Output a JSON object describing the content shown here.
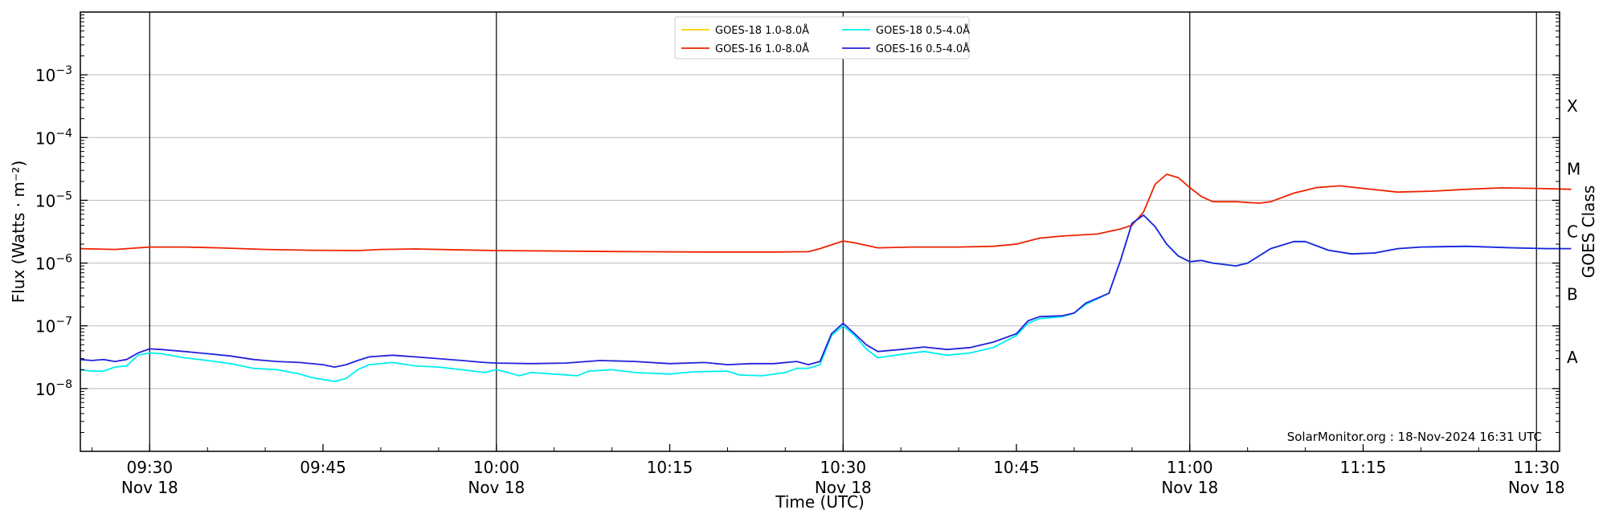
{
  "chart_data": {
    "type": "line",
    "xlabel": "Time (UTC)",
    "ylabel": "Flux (Watts · m⁻²)",
    "y2label": "GOES Class",
    "yscale": "log",
    "ylim": [
      1e-09,
      0.01
    ],
    "xlim": [
      "09:24",
      "11:32"
    ],
    "grid": "horizontal",
    "legend_position": "top-center",
    "credit": "SolarMonitor.org : 18-Nov-2024 16:31 UTC",
    "y_ticks": [
      {
        "value": 0.001,
        "base": "10",
        "exp": "−3"
      },
      {
        "value": 0.0001,
        "base": "10",
        "exp": "−4"
      },
      {
        "value": 1e-05,
        "base": "10",
        "exp": "−5"
      },
      {
        "value": 1e-06,
        "base": "10",
        "exp": "−6"
      },
      {
        "value": 1e-07,
        "base": "10",
        "exp": "−7"
      },
      {
        "value": 1e-08,
        "base": "10",
        "exp": "−8"
      }
    ],
    "goes_classes": [
      {
        "label": "X",
        "value": 0.0001
      },
      {
        "label": "M",
        "value": 1e-05
      },
      {
        "label": "C",
        "value": 1e-06
      },
      {
        "label": "B",
        "value": 1e-07
      },
      {
        "label": "A",
        "value": 1e-08
      }
    ],
    "x_ticks": [
      {
        "time": "09:30",
        "label": "09:30",
        "sublabel": "Nov 18"
      },
      {
        "time": "09:45",
        "label": "09:45",
        "sublabel": ""
      },
      {
        "time": "10:00",
        "label": "10:00",
        "sublabel": "Nov 18"
      },
      {
        "time": "10:15",
        "label": "10:15",
        "sublabel": ""
      },
      {
        "time": "10:30",
        "label": "10:30",
        "sublabel": "Nov 18"
      },
      {
        "time": "10:45",
        "label": "10:45",
        "sublabel": ""
      },
      {
        "time": "11:00",
        "label": "11:00",
        "sublabel": "Nov 18"
      },
      {
        "time": "11:15",
        "label": "11:15",
        "sublabel": ""
      },
      {
        "time": "11:30",
        "label": "11:30",
        "sublabel": "Nov 18"
      }
    ],
    "vlines": [
      "09:30",
      "10:00",
      "10:30",
      "11:00",
      "11:30"
    ],
    "series": [
      {
        "name": "GOES-18 1.0-8.0Å",
        "color": "#ffcc00",
        "points": []
      },
      {
        "name": "GOES-16 1.0-8.0Å",
        "color": "#ee2200",
        "points": [
          [
            "09:24",
            1.7e-06
          ],
          [
            "09:27",
            1.65e-06
          ],
          [
            "09:30",
            1.8e-06
          ],
          [
            "09:33",
            1.8e-06
          ],
          [
            "09:36",
            1.75e-06
          ],
          [
            "09:40",
            1.65e-06
          ],
          [
            "09:44",
            1.6e-06
          ],
          [
            "09:48",
            1.58e-06
          ],
          [
            "09:50",
            1.65e-06
          ],
          [
            "09:53",
            1.68e-06
          ],
          [
            "09:57",
            1.62e-06
          ],
          [
            "10:00",
            1.58e-06
          ],
          [
            "10:06",
            1.55e-06
          ],
          [
            "10:12",
            1.52e-06
          ],
          [
            "10:18",
            1.5e-06
          ],
          [
            "10:24",
            1.5e-06
          ],
          [
            "10:27",
            1.52e-06
          ],
          [
            "10:28",
            1.7e-06
          ],
          [
            "10:30",
            2.25e-06
          ],
          [
            "10:31",
            2.1e-06
          ],
          [
            "10:33",
            1.75e-06
          ],
          [
            "10:36",
            1.8e-06
          ],
          [
            "10:40",
            1.8e-06
          ],
          [
            "10:43",
            1.85e-06
          ],
          [
            "10:45",
            2e-06
          ],
          [
            "10:47",
            2.5e-06
          ],
          [
            "10:49",
            2.7e-06
          ],
          [
            "10:52",
            2.9e-06
          ],
          [
            "10:54",
            3.5e-06
          ],
          [
            "10:55",
            4e-06
          ],
          [
            "10:56",
            6.5e-06
          ],
          [
            "10:57",
            1.8e-05
          ],
          [
            "10:58",
            2.6e-05
          ],
          [
            "10:59",
            2.3e-05
          ],
          [
            "11:00",
            1.6e-05
          ],
          [
            "11:01",
            1.15e-05
          ],
          [
            "11:02",
            9.5e-06
          ],
          [
            "11:04",
            9.5e-06
          ],
          [
            "11:06",
            9e-06
          ],
          [
            "11:07",
            9.5e-06
          ],
          [
            "11:09",
            1.3e-05
          ],
          [
            "11:11",
            1.6e-05
          ],
          [
            "11:13",
            1.7e-05
          ],
          [
            "11:15",
            1.55e-05
          ],
          [
            "11:18",
            1.35e-05
          ],
          [
            "11:21",
            1.4e-05
          ],
          [
            "11:24",
            1.5e-05
          ],
          [
            "11:27",
            1.58e-05
          ],
          [
            "11:30",
            1.55e-05
          ],
          [
            "11:33",
            1.5e-05
          ]
        ]
      },
      {
        "name": "GOES-18 0.5-4.0Å",
        "color": "#00eeee",
        "points": [
          [
            "09:24",
            2e-08
          ],
          [
            "09:25",
            1.9e-08
          ],
          [
            "09:26",
            1.9e-08
          ],
          [
            "09:27",
            2.2e-08
          ],
          [
            "09:28",
            2.3e-08
          ],
          [
            "09:29",
            3.4e-08
          ],
          [
            "09:30",
            3.7e-08
          ],
          [
            "09:31",
            3.6e-08
          ],
          [
            "09:33",
            3.1e-08
          ],
          [
            "09:35",
            2.8e-08
          ],
          [
            "09:37",
            2.5e-08
          ],
          [
            "09:39",
            2.1e-08
          ],
          [
            "09:41",
            2e-08
          ],
          [
            "09:43",
            1.7e-08
          ],
          [
            "09:44",
            1.5e-08
          ],
          [
            "09:46",
            1.3e-08
          ],
          [
            "09:47",
            1.45e-08
          ],
          [
            "09:48",
            2e-08
          ],
          [
            "09:49",
            2.4e-08
          ],
          [
            "09:51",
            2.6e-08
          ],
          [
            "09:53",
            2.3e-08
          ],
          [
            "09:55",
            2.2e-08
          ],
          [
            "09:57",
            2e-08
          ],
          [
            "09:59",
            1.8e-08
          ],
          [
            "10:00",
            2e-08
          ],
          [
            "10:01",
            1.8e-08
          ],
          [
            "10:02",
            1.6e-08
          ],
          [
            "10:03",
            1.8e-08
          ],
          [
            "10:05",
            1.7e-08
          ],
          [
            "10:07",
            1.6e-08
          ],
          [
            "10:08",
            1.9e-08
          ],
          [
            "10:10",
            2e-08
          ],
          [
            "10:12",
            1.8e-08
          ],
          [
            "10:15",
            1.7e-08
          ],
          [
            "10:17",
            1.85e-08
          ],
          [
            "10:20",
            1.9e-08
          ],
          [
            "10:21",
            1.65e-08
          ],
          [
            "10:23",
            1.6e-08
          ],
          [
            "10:25",
            1.8e-08
          ],
          [
            "10:26",
            2.1e-08
          ],
          [
            "10:27",
            2.1e-08
          ],
          [
            "10:28",
            2.4e-08
          ],
          [
            "10:29",
            7e-08
          ],
          [
            "10:30",
            1e-07
          ],
          [
            "10:31",
            7e-08
          ],
          [
            "10:32",
            4.3e-08
          ],
          [
            "10:33",
            3.1e-08
          ],
          [
            "10:35",
            3.5e-08
          ],
          [
            "10:37",
            3.9e-08
          ],
          [
            "10:39",
            3.4e-08
          ],
          [
            "10:41",
            3.7e-08
          ],
          [
            "10:43",
            4.5e-08
          ],
          [
            "10:45",
            7e-08
          ],
          [
            "10:46",
            1.1e-07
          ],
          [
            "10:47",
            1.3e-07
          ],
          [
            "10:49",
            1.4e-07
          ],
          [
            "10:50",
            1.6e-07
          ],
          [
            "10:51",
            2.2e-07
          ],
          [
            "10:53",
            3.3e-07
          ],
          [
            "10:54",
            1.1e-06
          ],
          [
            "10:55",
            4.3e-06
          ],
          [
            "10:56",
            5.8e-06
          ],
          [
            "10:57",
            3.8e-06
          ],
          [
            "10:58",
            2e-06
          ],
          [
            "10:59",
            1.3e-06
          ],
          [
            "11:00",
            1.05e-06
          ],
          [
            "11:01",
            1.1e-06
          ],
          [
            "11:02",
            1e-06
          ],
          [
            "11:04",
            9e-07
          ],
          [
            "11:05",
            1e-06
          ],
          [
            "11:07",
            1.7e-06
          ],
          [
            "11:09",
            2.2e-06
          ],
          [
            "11:10",
            2.2e-06
          ],
          [
            "11:12",
            1.6e-06
          ],
          [
            "11:14",
            1.4e-06
          ],
          [
            "11:16",
            1.45e-06
          ],
          [
            "11:18",
            1.7e-06
          ],
          [
            "11:20",
            1.8e-06
          ],
          [
            "11:24",
            1.85e-06
          ],
          [
            "11:28",
            1.75e-06
          ],
          [
            "11:31",
            1.7e-06
          ],
          [
            "11:33",
            1.7e-06
          ]
        ]
      },
      {
        "name": "GOES-16 0.5-4.0Å",
        "color": "#2222dd",
        "points": [
          [
            "09:24",
            2.9e-08
          ],
          [
            "09:25",
            2.8e-08
          ],
          [
            "09:26",
            2.9e-08
          ],
          [
            "09:27",
            2.7e-08
          ],
          [
            "09:28",
            2.9e-08
          ],
          [
            "09:29",
            3.7e-08
          ],
          [
            "09:30",
            4.3e-08
          ],
          [
            "09:31",
            4.2e-08
          ],
          [
            "09:33",
            3.9e-08
          ],
          [
            "09:35",
            3.6e-08
          ],
          [
            "09:37",
            3.3e-08
          ],
          [
            "09:39",
            2.9e-08
          ],
          [
            "09:41",
            2.7e-08
          ],
          [
            "09:43",
            2.6e-08
          ],
          [
            "09:45",
            2.4e-08
          ],
          [
            "09:46",
            2.2e-08
          ],
          [
            "09:47",
            2.4e-08
          ],
          [
            "09:48",
            2.8e-08
          ],
          [
            "09:49",
            3.2e-08
          ],
          [
            "09:51",
            3.4e-08
          ],
          [
            "09:53",
            3.2e-08
          ],
          [
            "09:55",
            3e-08
          ],
          [
            "09:57",
            2.8e-08
          ],
          [
            "09:59",
            2.6e-08
          ],
          [
            "10:00",
            2.55e-08
          ],
          [
            "10:03",
            2.5e-08
          ],
          [
            "10:06",
            2.55e-08
          ],
          [
            "10:09",
            2.8e-08
          ],
          [
            "10:12",
            2.7e-08
          ],
          [
            "10:15",
            2.5e-08
          ],
          [
            "10:18",
            2.6e-08
          ],
          [
            "10:20",
            2.4e-08
          ],
          [
            "10:22",
            2.5e-08
          ],
          [
            "10:24",
            2.5e-08
          ],
          [
            "10:26",
            2.7e-08
          ],
          [
            "10:27",
            2.4e-08
          ],
          [
            "10:28",
            2.7e-08
          ],
          [
            "10:29",
            7.5e-08
          ],
          [
            "10:30",
            1.1e-07
          ],
          [
            "10:31",
            7.5e-08
          ],
          [
            "10:32",
            5e-08
          ],
          [
            "10:33",
            3.9e-08
          ],
          [
            "10:35",
            4.2e-08
          ],
          [
            "10:37",
            4.6e-08
          ],
          [
            "10:39",
            4.2e-08
          ],
          [
            "10:41",
            4.5e-08
          ],
          [
            "10:43",
            5.5e-08
          ],
          [
            "10:45",
            7.5e-08
          ],
          [
            "10:46",
            1.2e-07
          ],
          [
            "10:47",
            1.4e-07
          ],
          [
            "10:49",
            1.45e-07
          ],
          [
            "10:50",
            1.6e-07
          ],
          [
            "10:51",
            2.3e-07
          ],
          [
            "10:53",
            3.3e-07
          ],
          [
            "10:54",
            1.1e-06
          ],
          [
            "10:55",
            4.3e-06
          ],
          [
            "10:56",
            5.8e-06
          ],
          [
            "10:57",
            3.8e-06
          ],
          [
            "10:58",
            2e-06
          ],
          [
            "10:59",
            1.3e-06
          ],
          [
            "11:00",
            1.05e-06
          ],
          [
            "11:01",
            1.1e-06
          ],
          [
            "11:02",
            1e-06
          ],
          [
            "11:04",
            9e-07
          ],
          [
            "11:05",
            1e-06
          ],
          [
            "11:07",
            1.7e-06
          ],
          [
            "11:09",
            2.2e-06
          ],
          [
            "11:10",
            2.2e-06
          ],
          [
            "11:12",
            1.6e-06
          ],
          [
            "11:14",
            1.4e-06
          ],
          [
            "11:16",
            1.45e-06
          ],
          [
            "11:18",
            1.7e-06
          ],
          [
            "11:20",
            1.8e-06
          ],
          [
            "11:24",
            1.85e-06
          ],
          [
            "11:28",
            1.75e-06
          ],
          [
            "11:31",
            1.7e-06
          ],
          [
            "11:33",
            1.7e-06
          ]
        ]
      }
    ]
  }
}
